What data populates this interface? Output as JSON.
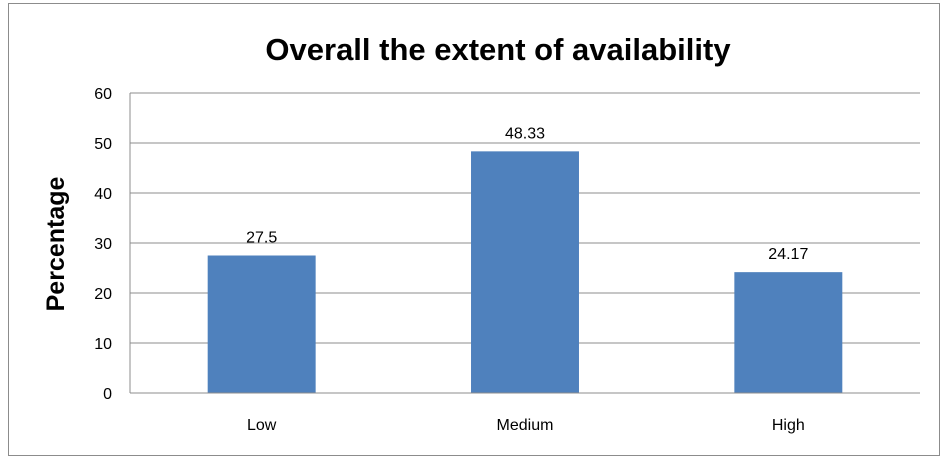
{
  "chart_data": {
    "type": "bar",
    "title": "Overall the extent of availability",
    "xlabel": "",
    "ylabel": "Percentage",
    "categories": [
      "Low",
      "Medium",
      "High"
    ],
    "values": [
      27.5,
      48.33,
      24.17
    ],
    "data_labels": [
      "27.5",
      "48.33",
      "24.17"
    ],
    "ylim": [
      0,
      60
    ],
    "yticks": [
      0,
      10,
      20,
      30,
      40,
      50,
      60
    ],
    "grid": true,
    "legend": "none",
    "bar_color": "#4f81bd",
    "grid_color": "#8c8c8c"
  }
}
